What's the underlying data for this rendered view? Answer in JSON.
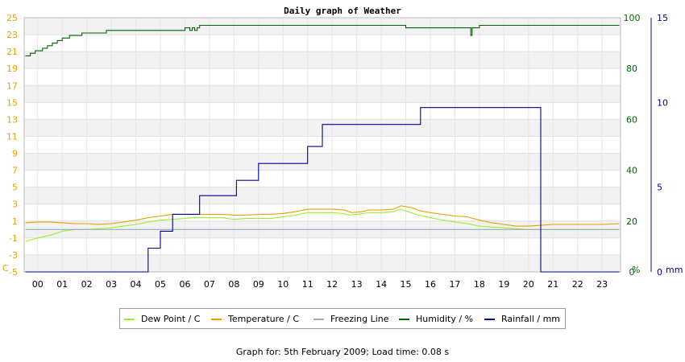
{
  "chart_data": {
    "type": "line",
    "title": "Daily graph of Weather",
    "x": {
      "tick_labels": [
        "00",
        "01",
        "02",
        "03",
        "04",
        "05",
        "06",
        "07",
        "08",
        "09",
        "10",
        "11",
        "12",
        "13",
        "14",
        "15",
        "16",
        "17",
        "18",
        "19",
        "20",
        "21",
        "22",
        "23"
      ]
    },
    "y_left": {
      "unit_label": "C",
      "range": [
        -5,
        25
      ],
      "tick_labels": [
        "-5",
        "-3",
        "-1",
        "1",
        "3",
        "5",
        "7",
        "9",
        "11",
        "13",
        "15",
        "17",
        "19",
        "21",
        "23",
        "25"
      ],
      "color": "#e8a000"
    },
    "y_right_humidity": {
      "unit_label": "%",
      "range": [
        0,
        100
      ],
      "tick_labels": [
        "0",
        "20",
        "40",
        "60",
        "80",
        "100"
      ],
      "color": "#006600"
    },
    "y_right_rain": {
      "unit_label": "mm",
      "range": [
        0,
        15
      ],
      "tick_labels": [
        "0",
        "5",
        "10",
        "15"
      ],
      "color": "#000099"
    },
    "series": [
      {
        "name": "Dew Point / C",
        "color": "#99ee33",
        "axis": "left",
        "points": [
          [
            -0.5,
            -1.4
          ],
          [
            0,
            -1.0
          ],
          [
            0.3,
            -0.8
          ],
          [
            0.6,
            -0.6
          ],
          [
            1.0,
            -0.2
          ],
          [
            1.5,
            0
          ],
          [
            2.0,
            0
          ],
          [
            2.5,
            0.1
          ],
          [
            3.0,
            0.2
          ],
          [
            3.5,
            0.4
          ],
          [
            4.0,
            0.6
          ],
          [
            4.5,
            0.9
          ],
          [
            5.0,
            1.1
          ],
          [
            5.5,
            1.2
          ],
          [
            6.0,
            1.3
          ],
          [
            6.3,
            1.4
          ],
          [
            6.7,
            1.4
          ],
          [
            7.0,
            1.4
          ],
          [
            7.5,
            1.4
          ],
          [
            8.0,
            1.2
          ],
          [
            8.5,
            1.3
          ],
          [
            9.0,
            1.3
          ],
          [
            9.5,
            1.3
          ],
          [
            10.0,
            1.5
          ],
          [
            10.5,
            1.7
          ],
          [
            11.0,
            2.0
          ],
          [
            11.5,
            2.0
          ],
          [
            12.0,
            2.0
          ],
          [
            12.4,
            1.9
          ],
          [
            12.7,
            1.7
          ],
          [
            13.0,
            1.8
          ],
          [
            13.5,
            2.0
          ],
          [
            14.0,
            2.0
          ],
          [
            14.5,
            2.1
          ],
          [
            14.8,
            2.4
          ],
          [
            15.2,
            2.0
          ],
          [
            15.5,
            1.7
          ],
          [
            16.0,
            1.4
          ],
          [
            16.5,
            1.1
          ],
          [
            17.0,
            0.9
          ],
          [
            17.5,
            0.7
          ],
          [
            18.0,
            0.4
          ],
          [
            18.5,
            0.3
          ],
          [
            19.0,
            0.2
          ],
          [
            19.5,
            0.1
          ],
          [
            20.0,
            0.0
          ],
          [
            20.5,
            0.0
          ],
          [
            21.0,
            0.0
          ],
          [
            21.5,
            0.0
          ],
          [
            22.0,
            0.0
          ],
          [
            22.5,
            0.0
          ],
          [
            23.0,
            0.0
          ],
          [
            23.7,
            0.0
          ]
        ]
      },
      {
        "name": "Temperature / C",
        "color": "#e8a000",
        "axis": "left",
        "points": [
          [
            -0.5,
            0.8
          ],
          [
            0,
            0.9
          ],
          [
            0.5,
            0.9
          ],
          [
            1.0,
            0.8
          ],
          [
            1.5,
            0.7
          ],
          [
            2.0,
            0.7
          ],
          [
            2.5,
            0.6
          ],
          [
            3.0,
            0.7
          ],
          [
            3.5,
            0.9
          ],
          [
            4.0,
            1.1
          ],
          [
            4.5,
            1.4
          ],
          [
            5.0,
            1.6
          ],
          [
            5.5,
            1.8
          ],
          [
            6.0,
            1.8
          ],
          [
            6.5,
            1.8
          ],
          [
            7.0,
            1.8
          ],
          [
            7.5,
            1.8
          ],
          [
            8.0,
            1.7
          ],
          [
            8.5,
            1.7
          ],
          [
            9.0,
            1.8
          ],
          [
            9.5,
            1.8
          ],
          [
            10.0,
            1.9
          ],
          [
            10.5,
            2.1
          ],
          [
            11.0,
            2.4
          ],
          [
            11.5,
            2.4
          ],
          [
            12.0,
            2.4
          ],
          [
            12.5,
            2.3
          ],
          [
            12.8,
            2.0
          ],
          [
            13.2,
            2.1
          ],
          [
            13.5,
            2.3
          ],
          [
            14.0,
            2.3
          ],
          [
            14.5,
            2.4
          ],
          [
            14.8,
            2.8
          ],
          [
            15.2,
            2.6
          ],
          [
            15.6,
            2.2
          ],
          [
            16.0,
            2.0
          ],
          [
            16.5,
            1.8
          ],
          [
            17.0,
            1.6
          ],
          [
            17.5,
            1.5
          ],
          [
            18.0,
            1.1
          ],
          [
            18.5,
            0.8
          ],
          [
            19.0,
            0.6
          ],
          [
            19.5,
            0.4
          ],
          [
            20.0,
            0.4
          ],
          [
            20.5,
            0.5
          ],
          [
            21.0,
            0.6
          ],
          [
            21.5,
            0.6
          ],
          [
            22.0,
            0.6
          ],
          [
            22.5,
            0.6
          ],
          [
            23.0,
            0.6
          ],
          [
            23.7,
            0.7
          ]
        ]
      },
      {
        "name": "Freezing Line",
        "color": "#99aabb",
        "axis": "left",
        "points": [
          [
            -0.5,
            0
          ],
          [
            23.7,
            0
          ]
        ]
      },
      {
        "name": "Humidity / %",
        "color": "#006600",
        "axis": "right_humidity",
        "step": true,
        "points": [
          [
            -0.5,
            85
          ],
          [
            -0.3,
            86
          ],
          [
            -0.1,
            87
          ],
          [
            0.2,
            88
          ],
          [
            0.4,
            89
          ],
          [
            0.6,
            90
          ],
          [
            0.8,
            91
          ],
          [
            1.0,
            92
          ],
          [
            1.3,
            93
          ],
          [
            1.8,
            94
          ],
          [
            2.8,
            95
          ],
          [
            6.0,
            96
          ],
          [
            6.2,
            95
          ],
          [
            6.3,
            96
          ],
          [
            6.4,
            95
          ],
          [
            6.5,
            96
          ],
          [
            6.6,
            97
          ],
          [
            15.0,
            96
          ],
          [
            17.6,
            96
          ],
          [
            17.65,
            93
          ],
          [
            17.7,
            96
          ],
          [
            18.0,
            97
          ],
          [
            23.7,
            97
          ]
        ]
      },
      {
        "name": "Rainfall / mm",
        "color": "#000099",
        "axis": "right_rain",
        "step": true,
        "points": [
          [
            -0.5,
            0
          ],
          [
            4.5,
            0
          ],
          [
            4.5,
            1.4
          ],
          [
            5.0,
            1.4
          ],
          [
            5.0,
            2.4
          ],
          [
            5.5,
            2.4
          ],
          [
            5.5,
            3.4
          ],
          [
            6.6,
            3.4
          ],
          [
            6.6,
            4.5
          ],
          [
            8.1,
            4.5
          ],
          [
            8.1,
            5.4
          ],
          [
            9.0,
            5.4
          ],
          [
            9.0,
            6.4
          ],
          [
            11.0,
            6.4
          ],
          [
            11.0,
            7.4
          ],
          [
            11.6,
            7.4
          ],
          [
            11.6,
            8.7
          ],
          [
            15.6,
            8.7
          ],
          [
            15.6,
            9.7
          ],
          [
            20.5,
            9.7
          ],
          [
            20.5,
            0
          ],
          [
            23.7,
            0
          ]
        ]
      }
    ],
    "grid": true
  },
  "footer": "Graph for: 5th February 2009; Load time: 0.08 s"
}
